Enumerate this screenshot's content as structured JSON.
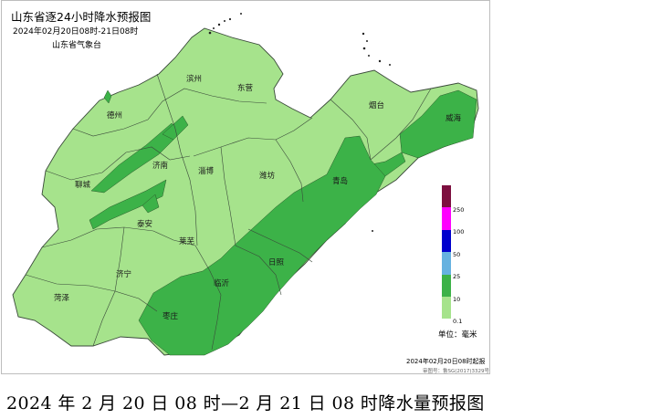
{
  "header": {
    "title": "山东省逐24小时降水预报图",
    "period": "2024年02月20日08时-21日08时",
    "agency": "山东省气象台"
  },
  "cities": [
    "德州",
    "滨州",
    "东营",
    "烟台",
    "威海",
    "聊城",
    "济南",
    "淄博",
    "潍坊",
    "青岛",
    "泰安",
    "莱芜",
    "济宁",
    "日照",
    "临沂",
    "菏泽",
    "枣庄"
  ],
  "legend": {
    "levels": [
      "250",
      "100",
      "50",
      "25",
      "10",
      "0.1"
    ],
    "colors": [
      "#7d0f3f",
      "#ff00ff",
      "#0000cd",
      "#66b2e0",
      "#3cb248",
      "#a6e38c"
    ],
    "unit_label": "单位：毫米"
  },
  "map": {
    "light_fill": "#a6e38c",
    "heavy_fill": "#3cb248",
    "light_range_mm": "0.1-10",
    "heavy_range_mm": "10-25"
  },
  "footer": {
    "issue_time": "2024年02月20日08时起报",
    "review_no": "审图号：鲁SG(2017)3329号"
  },
  "caption": "2024 年 2 月 20 日 08 时—2 月 21 日 08 时降水量预报图"
}
